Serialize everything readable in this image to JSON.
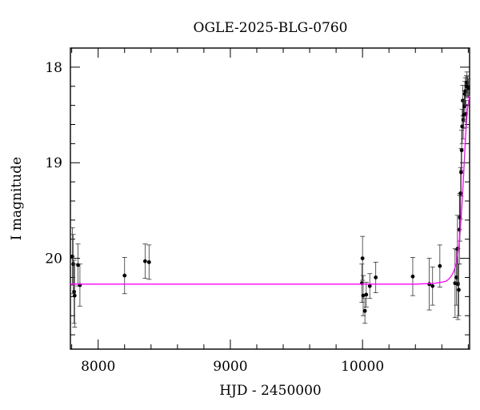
{
  "chart_data": {
    "type": "scatter",
    "title": "OGLE-2025-BLG-0760",
    "xlabel": "HJD - 2450000",
    "ylabel": "I magnitude",
    "xlim": [
      7790,
      10810
    ],
    "ylim": [
      20.95,
      17.8
    ],
    "y_inverted": true,
    "grid": false,
    "x_ticks": [
      8000,
      9000,
      10000
    ],
    "y_ticks": [
      18,
      19,
      20
    ],
    "colors": {
      "points": "#000000",
      "model": "#ff00ff"
    },
    "series": [
      {
        "x": [
          7805,
          7812,
          7818,
          7822,
          7848,
          7862,
          8200,
          8355,
          8385,
          9995,
          10000,
          10005,
          10018,
          10028,
          10055,
          10100,
          10380,
          10505,
          10530,
          10585,
          10700,
          10710,
          10718,
          10722,
          10728,
          10733,
          10737,
          10742,
          10746,
          10750,
          10754,
          10758,
          10762,
          10766,
          10770,
          10774,
          10778,
          10782,
          10786,
          10790,
          10795,
          10800
        ],
        "y": [
          19.98,
          20.06,
          20.35,
          20.39,
          20.07,
          20.28,
          20.18,
          20.03,
          20.04,
          20.26,
          20.0,
          20.39,
          20.55,
          20.38,
          20.29,
          20.2,
          20.19,
          20.27,
          20.29,
          20.08,
          20.26,
          20.2,
          19.9,
          20.27,
          20.33,
          19.7,
          19.57,
          19.32,
          19.1,
          18.87,
          18.62,
          18.35,
          18.55,
          18.5,
          18.41,
          18.28,
          18.25,
          18.49,
          18.2,
          18.16,
          18.2,
          18.22
        ],
        "yerr": [
          0.3,
          0.31,
          0.33,
          0.33,
          0.22,
          0.22,
          0.19,
          0.18,
          0.18,
          0.2,
          0.23,
          0.21,
          0.13,
          0.13,
          0.13,
          0.16,
          0.2,
          0.27,
          0.2,
          0.22,
          0.36,
          0.29,
          0.35,
          0.37,
          0.27,
          0.36,
          0.25,
          0.27,
          0.25,
          0.21,
          0.18,
          0.16,
          0.2,
          0.14,
          0.16,
          0.13,
          0.14,
          0.14,
          0.11,
          0.11,
          0.1,
          0.1
        ]
      }
    ],
    "model": {
      "baseline_mag": 20.27,
      "x": [
        7790,
        10400,
        10500,
        10550,
        10600,
        10630,
        10650,
        10670,
        10690,
        10710,
        10725,
        10740,
        10755,
        10765,
        10775,
        10785,
        10795,
        10810
      ],
      "y": [
        20.27,
        20.27,
        20.265,
        20.26,
        20.25,
        20.24,
        20.22,
        20.19,
        20.14,
        20.05,
        19.92,
        19.7,
        19.38,
        19.12,
        18.85,
        18.6,
        18.43,
        18.3
      ]
    }
  }
}
